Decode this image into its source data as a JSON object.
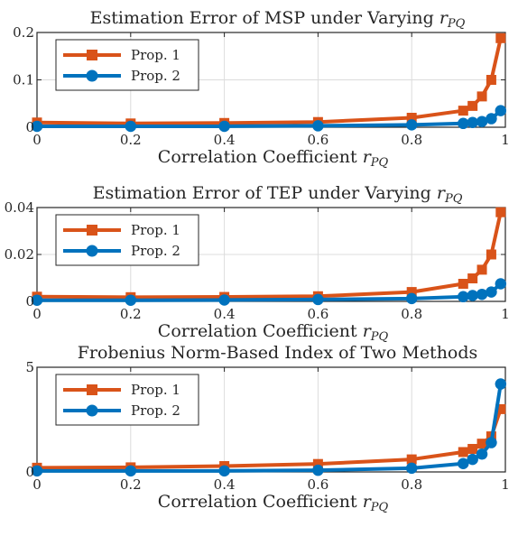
{
  "chart_data": [
    {
      "type": "line",
      "title": "Estimation Error of MSP under Varying r_PQ",
      "title_text": "Estimation Error of MSP under Varying ",
      "title_var": "r",
      "title_sub": "PQ",
      "xlabel_text": "Correlation Coefficient ",
      "xlabel_var": "r",
      "xlabel_sub": "PQ",
      "xlim": [
        0,
        1
      ],
      "ylim": [
        0,
        0.2
      ],
      "xticks": [
        0,
        0.2,
        0.4,
        0.6,
        0.8,
        1
      ],
      "xtick_labels": [
        "0",
        "0.2",
        "0.4",
        "0.6",
        "0.8",
        "1"
      ],
      "yticks": [
        0,
        0.1,
        0.2
      ],
      "ytick_labels": [
        "0",
        "0.1",
        "0.2"
      ],
      "grid": true,
      "legend_position": "top-left",
      "x": [
        0,
        0.2,
        0.4,
        0.6,
        0.8,
        0.91,
        0.93,
        0.95,
        0.97,
        0.99
      ],
      "series": [
        {
          "name": "Prop. 1",
          "marker": "square",
          "color": "#D95319",
          "values": [
            0.01,
            0.008,
            0.009,
            0.011,
            0.02,
            0.035,
            0.045,
            0.065,
            0.1,
            0.188
          ]
        },
        {
          "name": "Prop. 2",
          "marker": "circle",
          "color": "#0072BD",
          "values": [
            0.002,
            0.002,
            0.002,
            0.003,
            0.005,
            0.008,
            0.01,
            0.012,
            0.018,
            0.035
          ]
        }
      ]
    },
    {
      "type": "line",
      "title": "Estimation Error of TEP under Varying r_PQ",
      "title_text": "Estimation Error of TEP under Varying ",
      "title_var": "r",
      "title_sub": "PQ",
      "xlabel_text": "Correlation Coefficient ",
      "xlabel_var": "r",
      "xlabel_sub": "PQ",
      "xlim": [
        0,
        1
      ],
      "ylim": [
        0,
        0.04
      ],
      "xticks": [
        0,
        0.2,
        0.4,
        0.6,
        0.8,
        1
      ],
      "xtick_labels": [
        "0",
        "0.2",
        "0.4",
        "0.6",
        "0.8",
        "1"
      ],
      "yticks": [
        0,
        0.02,
        0.04
      ],
      "ytick_labels": [
        "0",
        "0.02",
        "0.04"
      ],
      "grid": true,
      "legend_position": "top-left",
      "x": [
        0,
        0.2,
        0.4,
        0.6,
        0.8,
        0.91,
        0.93,
        0.95,
        0.97,
        0.99
      ],
      "series": [
        {
          "name": "Prop. 1",
          "marker": "square",
          "color": "#D95319",
          "values": [
            0.002,
            0.0018,
            0.0019,
            0.0022,
            0.004,
            0.0075,
            0.0098,
            0.0135,
            0.02,
            0.038
          ]
        },
        {
          "name": "Prop. 2",
          "marker": "circle",
          "color": "#0072BD",
          "values": [
            0.0005,
            0.0005,
            0.0006,
            0.0008,
            0.0012,
            0.002,
            0.0025,
            0.003,
            0.004,
            0.0075
          ]
        }
      ]
    },
    {
      "type": "line",
      "title": "Frobenius Norm-Based Index of Two Methods",
      "title_text": "Frobenius Norm-Based Index of Two Methods",
      "title_var": "",
      "title_sub": "",
      "xlabel_text": "Correlation Coefficient ",
      "xlabel_var": "r",
      "xlabel_sub": "PQ",
      "xlim": [
        0,
        1
      ],
      "ylim": [
        0,
        5
      ],
      "xticks": [
        0,
        0.2,
        0.4,
        0.6,
        0.8,
        1
      ],
      "xtick_labels": [
        "0",
        "0.2",
        "0.4",
        "0.6",
        "0.8",
        "1"
      ],
      "yticks": [
        0,
        5
      ],
      "ytick_labels": [
        "0",
        "5"
      ],
      "grid": true,
      "legend_position": "top-left",
      "x": [
        0,
        0.2,
        0.4,
        0.6,
        0.8,
        0.91,
        0.93,
        0.95,
        0.97,
        0.99
      ],
      "series": [
        {
          "name": "Prop. 1",
          "marker": "square",
          "color": "#D95319",
          "values": [
            0.2,
            0.22,
            0.28,
            0.38,
            0.6,
            0.95,
            1.1,
            1.35,
            1.7,
            3.0
          ]
        },
        {
          "name": "Prop. 2",
          "marker": "circle",
          "color": "#0072BD",
          "values": [
            0.05,
            0.05,
            0.05,
            0.08,
            0.18,
            0.4,
            0.6,
            0.85,
            1.4,
            4.2
          ]
        }
      ]
    }
  ]
}
